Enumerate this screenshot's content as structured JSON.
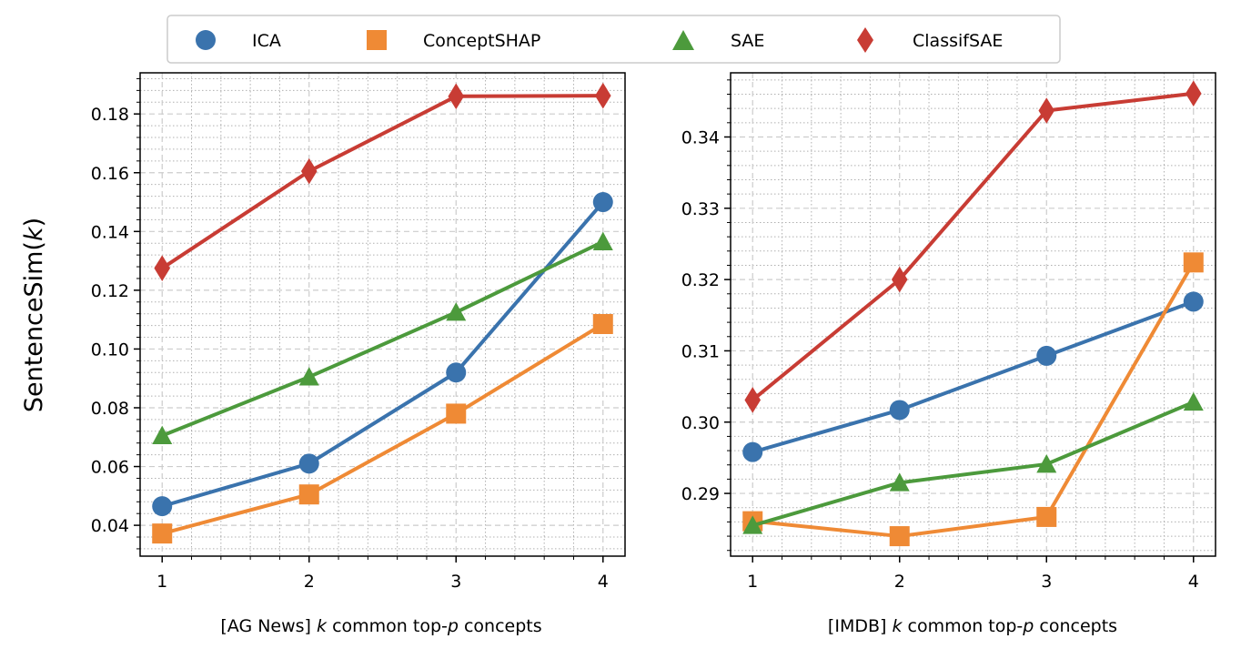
{
  "chart_data": [
    {
      "type": "line",
      "panel": "left",
      "xlabel": "[AG News] k common top-p concepts",
      "xlabel_parts": {
        "prefix": "[AG News] ",
        "k": "k",
        "middle": " common top-",
        "p": "p",
        "suffix": " concepts"
      },
      "ylabel": "SentenceSim(k)",
      "ylabel_parts": {
        "prefix": "SentenceSim(",
        "k": "k",
        "suffix": ")"
      },
      "x": [
        1,
        2,
        3,
        4
      ],
      "xlim": [
        0.85,
        4.15
      ],
      "ylim": [
        0.0295,
        0.194
      ],
      "yticks": [
        0.04,
        0.06,
        0.08,
        0.1,
        0.12,
        0.14,
        0.16,
        0.18
      ],
      "ytick_labels": [
        "0.04",
        "0.06",
        "0.08",
        "0.10",
        "0.12",
        "0.14",
        "0.16",
        "0.18"
      ],
      "xtick_labels": [
        "1",
        "2",
        "3",
        "4"
      ],
      "grid": true,
      "series": [
        {
          "name": "ICA",
          "values": [
            0.0465,
            0.061,
            0.092,
            0.15
          ]
        },
        {
          "name": "ConceptSHAP",
          "values": [
            0.0372,
            0.0505,
            0.078,
            0.1085
          ]
        },
        {
          "name": "SAE",
          "values": [
            0.0705,
            0.0905,
            0.1125,
            0.1365
          ]
        },
        {
          "name": "ClassifSAE",
          "values": [
            0.1275,
            0.1605,
            0.186,
            0.1862
          ]
        }
      ]
    },
    {
      "type": "line",
      "panel": "right",
      "xlabel": "[IMDB] k common top-p concepts",
      "xlabel_parts": {
        "prefix": "[IMDB] ",
        "k": "k",
        "middle": " common top-",
        "p": "p",
        "suffix": " concepts"
      },
      "ylabel": "",
      "x": [
        1,
        2,
        3,
        4
      ],
      "xlim": [
        0.85,
        4.15
      ],
      "ylim": [
        0.2812,
        0.349
      ],
      "yticks": [
        0.29,
        0.3,
        0.31,
        0.32,
        0.33,
        0.34
      ],
      "ytick_labels": [
        "0.29",
        "0.30",
        "0.31",
        "0.32",
        "0.33",
        "0.34"
      ],
      "xtick_labels": [
        "1",
        "2",
        "3",
        "4"
      ],
      "grid": true,
      "series": [
        {
          "name": "ICA",
          "values": [
            0.2958,
            0.3017,
            0.3093,
            0.3169
          ]
        },
        {
          "name": "ConceptSHAP",
          "values": [
            0.2861,
            0.284,
            0.2867,
            0.3224
          ]
        },
        {
          "name": "SAE",
          "values": [
            0.2855,
            0.2915,
            0.2941,
            0.3028
          ]
        },
        {
          "name": "ClassifSAE",
          "values": [
            0.3031,
            0.32,
            0.3437,
            0.3461
          ]
        }
      ]
    }
  ],
  "legend": {
    "placement": "top-center",
    "entries": [
      {
        "name": "ICA",
        "marker": "circle",
        "color": "#3a73ad"
      },
      {
        "name": "ConceptSHAP",
        "marker": "square",
        "color": "#ef8a35"
      },
      {
        "name": "SAE",
        "marker": "triangle",
        "color": "#4c9a3c"
      },
      {
        "name": "ClassifSAE",
        "marker": "diamond",
        "color": "#c83c34"
      }
    ]
  }
}
